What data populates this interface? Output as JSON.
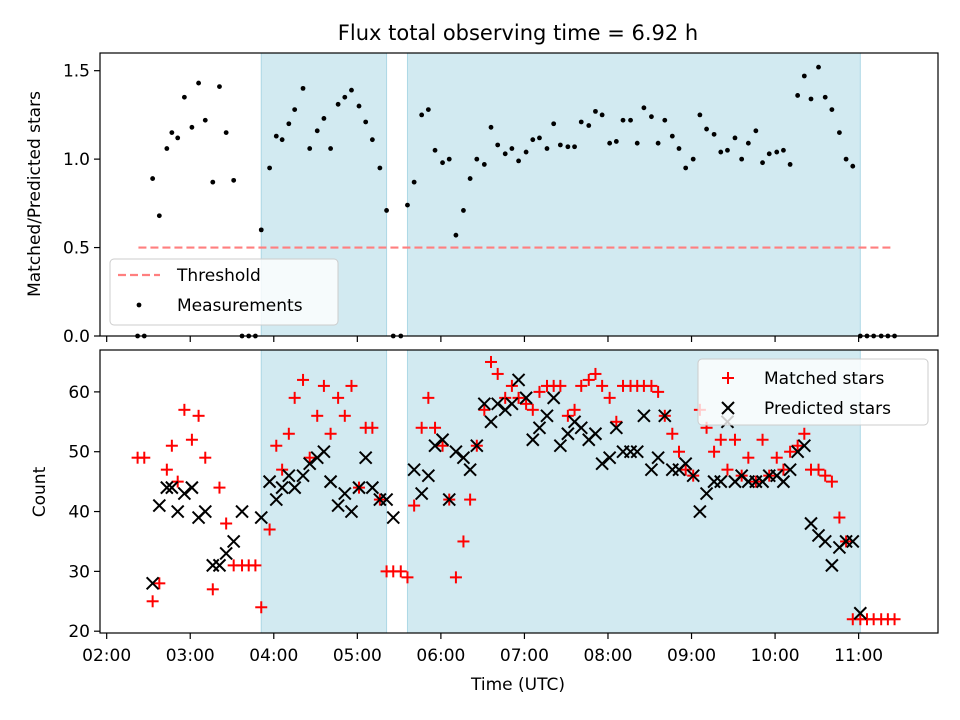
{
  "chart_data": [
    {
      "type": "scatter",
      "title": "Flux total observing time = 6.92 h",
      "xlabel": "",
      "ylabel": "Matched/Predicted stars",
      "ylim": [
        0,
        1.6
      ],
      "y_ticks": [
        0.0,
        0.5,
        1.0,
        1.5
      ],
      "y_tick_labels": [
        "0.0",
        "0.5",
        "1.0",
        "1.5"
      ],
      "grid": false,
      "legend_position": "lower-left",
      "shaded_intervals_hours": [
        [
          3.85,
          5.35
        ],
        [
          5.6,
          11.02
        ]
      ],
      "shade_color": "#add8e6",
      "series": [
        {
          "name": "Threshold",
          "kind": "dashed-line",
          "color": "#ff7f7f",
          "x": [
            2.38,
            11.38
          ],
          "y": [
            0.5,
            0.5
          ]
        },
        {
          "name": "Measurements",
          "kind": "dot",
          "color": "#000000",
          "x": [
            2.37,
            2.45,
            2.55,
            2.63,
            2.72,
            2.78,
            2.85,
            2.93,
            3.02,
            3.1,
            3.18,
            3.27,
            3.35,
            3.43,
            3.52,
            3.62,
            3.7,
            3.78,
            3.85,
            3.95,
            4.03,
            4.1,
            4.18,
            4.25,
            4.35,
            4.43,
            4.52,
            4.6,
            4.68,
            4.77,
            4.85,
            4.93,
            5.02,
            5.1,
            5.18,
            5.27,
            5.35,
            5.43,
            5.52,
            5.6,
            5.68,
            5.77,
            5.85,
            5.93,
            6.02,
            6.1,
            6.18,
            6.27,
            6.35,
            6.43,
            6.52,
            6.6,
            6.68,
            6.77,
            6.85,
            6.93,
            7.02,
            7.1,
            7.18,
            7.27,
            7.35,
            7.43,
            7.52,
            7.6,
            7.68,
            7.77,
            7.85,
            7.93,
            8.02,
            8.1,
            8.18,
            8.27,
            8.35,
            8.43,
            8.52,
            8.6,
            8.68,
            8.77,
            8.85,
            8.93,
            9.02,
            9.1,
            9.18,
            9.27,
            9.35,
            9.43,
            9.52,
            9.6,
            9.68,
            9.77,
            9.85,
            9.93,
            10.02,
            10.1,
            10.18,
            10.27,
            10.35,
            10.43,
            10.52,
            10.6,
            10.68,
            10.77,
            10.85,
            10.93,
            11.02,
            11.1,
            11.18,
            11.27,
            11.35,
            11.43
          ],
          "y": [
            0,
            0,
            0.89,
            0.68,
            1.06,
            1.15,
            1.12,
            1.35,
            1.18,
            1.43,
            1.22,
            0.87,
            1.41,
            1.15,
            0.88,
            0,
            0,
            0,
            0.6,
            0.95,
            1.13,
            1.11,
            1.2,
            1.28,
            1.4,
            1.06,
            1.16,
            1.23,
            1.06,
            1.31,
            1.35,
            1.39,
            1.3,
            1.21,
            1.11,
            0.95,
            0.71,
            0,
            0,
            0.74,
            0.87,
            1.25,
            1.28,
            1.05,
            0.98,
            1.0,
            0.57,
            0.71,
            0.89,
            1.0,
            0.97,
            1.18,
            1.08,
            1.03,
            1.06,
            0.99,
            1.04,
            1.11,
            1.12,
            1.06,
            1.2,
            1.08,
            1.07,
            1.07,
            1.21,
            1.19,
            1.27,
            1.25,
            1.09,
            1.1,
            1.22,
            1.22,
            1.09,
            1.29,
            1.24,
            1.09,
            1.22,
            1.13,
            1.06,
            0.95,
            1.0,
            1.25,
            1.17,
            1.14,
            1.04,
            1.05,
            1.12,
            1.0,
            1.09,
            1.16,
            0.98,
            1.03,
            1.04,
            1.05,
            0.97,
            1.36,
            1.47,
            1.34,
            1.52,
            1.35,
            1.28,
            1.15,
            1.0,
            0.96,
            0,
            0,
            0,
            0,
            0,
            0
          ]
        }
      ]
    },
    {
      "type": "scatter",
      "title": "",
      "xlabel": "Time (UTC)",
      "ylabel": "Count",
      "xlim_hours": [
        1.92,
        11.95
      ],
      "ylim": [
        19.7,
        67.0
      ],
      "x_ticks_hours": [
        2,
        3,
        4,
        5,
        6,
        7,
        8,
        9,
        10,
        11
      ],
      "x_tick_labels": [
        "02:00",
        "03:00",
        "04:00",
        "05:00",
        "06:00",
        "07:00",
        "08:00",
        "09:00",
        "10:00",
        "11:00"
      ],
      "y_ticks": [
        20,
        30,
        40,
        50,
        60
      ],
      "y_tick_labels": [
        "20",
        "30",
        "40",
        "50",
        "60"
      ],
      "grid": false,
      "legend_position": "upper-right",
      "shaded_intervals_hours": [
        [
          3.85,
          5.35
        ],
        [
          5.6,
          11.02
        ]
      ],
      "shade_color": "#add8e6",
      "series": [
        {
          "name": "Matched stars",
          "marker": "plus",
          "color": "#ff0000",
          "x": [
            2.37,
            2.45,
            2.55,
            2.63,
            2.72,
            2.78,
            2.85,
            2.93,
            3.02,
            3.1,
            3.18,
            3.27,
            3.35,
            3.43,
            3.52,
            3.62,
            3.7,
            3.78,
            3.85,
            3.95,
            4.03,
            4.1,
            4.18,
            4.25,
            4.35,
            4.43,
            4.52,
            4.6,
            4.68,
            4.77,
            4.85,
            4.93,
            5.02,
            5.1,
            5.18,
            5.27,
            5.35,
            5.43,
            5.52,
            5.6,
            5.68,
            5.77,
            5.85,
            5.93,
            6.02,
            6.1,
            6.18,
            6.27,
            6.35,
            6.43,
            6.52,
            6.6,
            6.68,
            6.77,
            6.85,
            6.93,
            7.02,
            7.1,
            7.18,
            7.27,
            7.35,
            7.43,
            7.52,
            7.6,
            7.68,
            7.77,
            7.85,
            7.93,
            8.02,
            8.1,
            8.18,
            8.27,
            8.35,
            8.43,
            8.52,
            8.6,
            8.68,
            8.77,
            8.85,
            8.93,
            9.02,
            9.1,
            9.18,
            9.27,
            9.35,
            9.43,
            9.52,
            9.6,
            9.68,
            9.77,
            9.85,
            9.93,
            10.02,
            10.1,
            10.18,
            10.27,
            10.35,
            10.43,
            10.52,
            10.6,
            10.68,
            10.77,
            10.85,
            10.93,
            11.02,
            11.1,
            11.18,
            11.27,
            11.35,
            11.43
          ],
          "y": [
            49,
            49,
            25,
            28,
            47,
            51,
            45,
            57,
            52,
            56,
            49,
            27,
            44,
            38,
            31,
            31,
            31,
            31,
            24,
            37,
            51,
            47,
            53,
            59,
            62,
            49,
            56,
            61,
            53,
            59,
            56,
            61,
            44,
            54,
            54,
            42,
            30,
            30,
            30,
            29,
            41,
            54,
            59,
            54,
            51,
            42,
            29,
            35,
            42,
            51,
            57,
            65,
            63,
            59,
            61,
            59,
            58,
            57,
            60,
            61,
            61,
            61,
            56,
            57,
            61,
            62,
            63,
            61,
            59,
            55,
            61,
            61,
            61,
            61,
            61,
            60,
            56,
            53,
            50,
            47,
            46,
            57,
            54,
            50,
            52,
            47,
            52,
            46,
            49,
            45,
            52,
            46,
            49,
            47,
            50,
            51,
            53,
            47,
            47,
            46,
            45,
            39,
            35,
            22,
            22,
            22,
            22,
            22,
            22,
            22
          ],
          "y_note": ""
        },
        {
          "name": "Predicted stars",
          "marker": "x",
          "color": "#000000",
          "x": [
            2.55,
            2.63,
            2.72,
            2.78,
            2.85,
            2.93,
            3.02,
            3.1,
            3.18,
            3.27,
            3.35,
            3.43,
            3.52,
            3.62,
            3.85,
            3.95,
            4.03,
            4.1,
            4.18,
            4.25,
            4.35,
            4.43,
            4.52,
            4.6,
            4.68,
            4.77,
            4.85,
            4.93,
            5.02,
            5.1,
            5.18,
            5.27,
            5.35,
            5.43,
            5.68,
            5.77,
            5.85,
            5.93,
            6.02,
            6.1,
            6.18,
            6.27,
            6.35,
            6.43,
            6.52,
            6.6,
            6.68,
            6.77,
            6.85,
            6.93,
            7.02,
            7.1,
            7.18,
            7.27,
            7.35,
            7.43,
            7.52,
            7.6,
            7.68,
            7.77,
            7.85,
            7.93,
            8.02,
            8.1,
            8.18,
            8.27,
            8.35,
            8.43,
            8.52,
            8.6,
            8.68,
            8.77,
            8.85,
            8.93,
            9.02,
            9.1,
            9.18,
            9.27,
            9.35,
            9.43,
            9.52,
            9.6,
            9.68,
            9.77,
            9.85,
            9.93,
            10.02,
            10.1,
            10.18,
            10.27,
            10.35,
            10.43,
            10.52,
            10.6,
            10.68,
            10.77,
            10.85,
            10.93,
            11.02
          ],
          "y": [
            28,
            41,
            44,
            44,
            40,
            43,
            44,
            39,
            40,
            31,
            31,
            33,
            35,
            40,
            39,
            45,
            42,
            44,
            46,
            44,
            46,
            48,
            49,
            50,
            45,
            41,
            43,
            40,
            44,
            49,
            44,
            42,
            42,
            39,
            47,
            43,
            46,
            51,
            52,
            42,
            50,
            49,
            47,
            51,
            58,
            55,
            58,
            57,
            58,
            62,
            59,
            52,
            54,
            56,
            59,
            51,
            53,
            55,
            54,
            52,
            53,
            48,
            49,
            54,
            50,
            50,
            50,
            56,
            47,
            49,
            56,
            47,
            47,
            48,
            46,
            40,
            43,
            45,
            45,
            55,
            45,
            46,
            45,
            45,
            45,
            46,
            46,
            45,
            47,
            50,
            51,
            38,
            36,
            35,
            31,
            34,
            35,
            35,
            23
          ],
          "y_note": ""
        }
      ]
    }
  ]
}
